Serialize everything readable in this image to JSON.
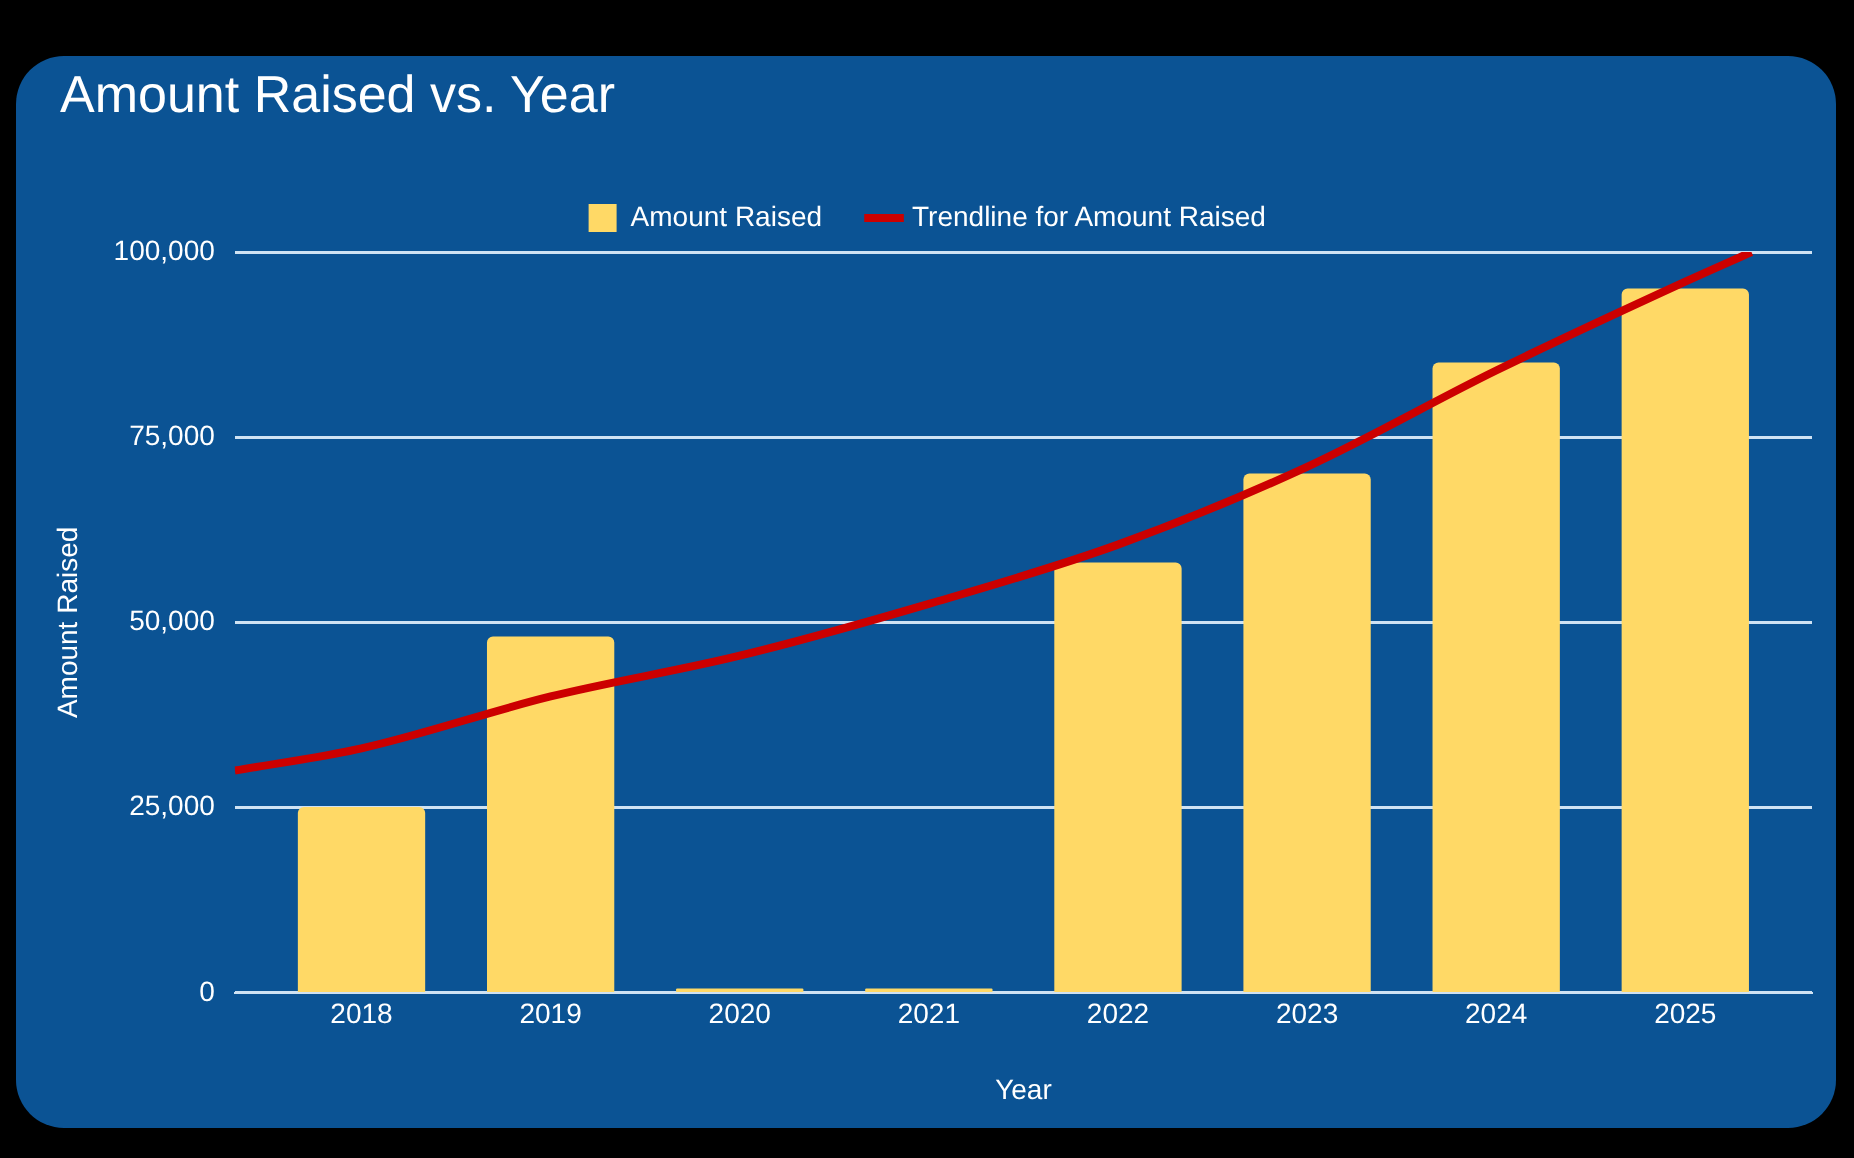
{
  "chart_data": {
    "type": "bar",
    "title": "Amount Raised vs. Year",
    "xlabel": "Year",
    "ylabel": "Amount Raised",
    "x": [
      2018,
      2019,
      2020,
      2021,
      2022,
      2023,
      2024,
      2025
    ],
    "xlim": [
      2017.33,
      2025.67
    ],
    "xticks": [
      2018,
      2019,
      2020,
      2021,
      2022,
      2023,
      2024,
      2025
    ],
    "ylim": [
      0,
      100000
    ],
    "yticks": [
      {
        "value": 0,
        "label": "0"
      },
      {
        "value": 25000,
        "label": "25,000"
      },
      {
        "value": 50000,
        "label": "50,000"
      },
      {
        "value": 75000,
        "label": "75,000"
      },
      {
        "value": 100000,
        "label": "100,000"
      }
    ],
    "series": [
      {
        "name": "Amount Raised",
        "color": "#ffd966",
        "values": [
          25000,
          48000,
          500,
          500,
          58000,
          70000,
          85000,
          95000
        ]
      },
      {
        "name": "Trendline for Amount Raised",
        "type": "line",
        "color": "#cc0000",
        "x": [
          2017.33,
          2018,
          2019,
          2020,
          2021,
          2022,
          2023,
          2024,
          2025,
          2025.35
        ],
        "values": [
          30000,
          33000,
          40000,
          45500,
          52500,
          60500,
          71000,
          84000,
          96000,
          100000
        ]
      }
    ],
    "grid": "y",
    "legend": "top",
    "marker": "none"
  }
}
